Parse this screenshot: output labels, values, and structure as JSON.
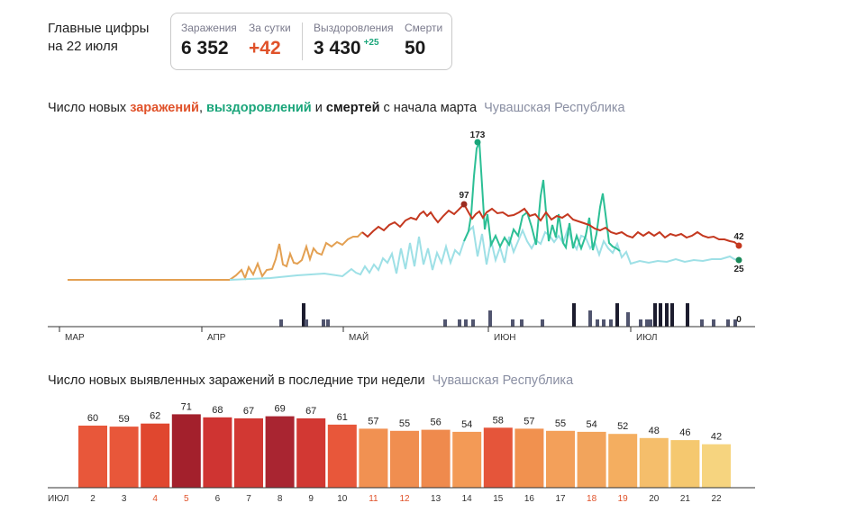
{
  "header": {
    "title_line1": "Главные цифры",
    "title_line2": "на 22 июля"
  },
  "stats": {
    "infections_label": "Заражения",
    "infections_value": "6 352",
    "day_label": "За сутки",
    "day_value": "+42",
    "recovered_label": "Выздоровления",
    "recovered_value": "3 430",
    "recovered_delta": "+25",
    "deaths_label": "Смерти",
    "deaths_value": "50"
  },
  "chart1_title": {
    "p1": "Число новых ",
    "infections": "заражений",
    "p2": ", ",
    "recoveries": "выздоровлений",
    "p3": " и ",
    "deaths": "смертей",
    "p4": " с начала марта",
    "region": "Чувашская Республика"
  },
  "chart2_title": {
    "text": "Число новых выявленных заражений в последние три недели",
    "region": "Чувашская Республика"
  },
  "colors": {
    "infections_line": "#c4381f",
    "early_line": "#e3a052",
    "recoveries_line": "#2cbf95",
    "recoveries_light": "#9ee0e6",
    "deaths_bars": "#51556f",
    "deaths_bars_dark": "#1c1c2e",
    "axis": "#333333"
  },
  "chart_data": [
    {
      "type": "line",
      "x_labels": [
        "МАР",
        "АПР",
        "МАЙ",
        "ИЮН",
        "ИЮЛ"
      ],
      "point_labels": {
        "infections_peak": "97",
        "recoveries_peak": "173",
        "infections_last": "42",
        "recoveries_last": "25",
        "deaths_last": "0"
      },
      "series": []
    },
    {
      "type": "bar",
      "x_axis_start_label": "ИЮЛ",
      "categories": [
        "2",
        "3",
        "4",
        "5",
        "6",
        "7",
        "8",
        "9",
        "10",
        "11",
        "12",
        "13",
        "14",
        "15",
        "16",
        "17",
        "18",
        "19",
        "20",
        "21",
        "22"
      ],
      "weekend_days": [
        "4",
        "5",
        "11",
        "12",
        "18",
        "19"
      ],
      "values": [
        60,
        59,
        62,
        71,
        68,
        67,
        69,
        67,
        61,
        57,
        55,
        56,
        54,
        58,
        57,
        55,
        54,
        52,
        48,
        46,
        42
      ],
      "bar_colors": [
        "#e8573a",
        "#e8573a",
        "#e0472f",
        "#a3202c",
        "#cf3432",
        "#d23833",
        "#a92531",
        "#d23833",
        "#e8573a",
        "#f19152",
        "#f08e50",
        "#ef8a4d",
        "#f39a56",
        "#e5553a",
        "#f1914f",
        "#f3a05a",
        "#f2a45c",
        "#f4ae60",
        "#f5be6b",
        "#f5c86f",
        "#f6d47f"
      ]
    }
  ]
}
